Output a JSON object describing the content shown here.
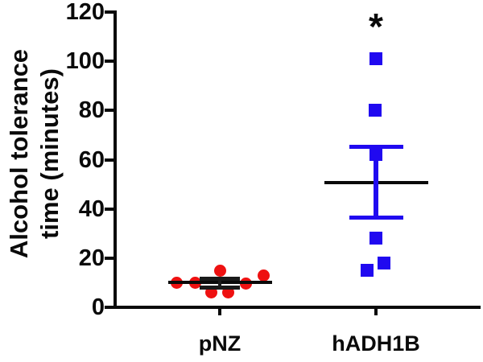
{
  "figure": {
    "y_axis_label_line1": "Alcohol tolerance",
    "y_axis_label_line2": "time (minutes)"
  },
  "colors": {
    "pnz_marker": "#ee1111",
    "hadh1b_marker": "#2009f0",
    "axis": "#0a0a0a",
    "mean_line": "#0a0a0a",
    "background": "#ffffff"
  },
  "chart_data": {
    "type": "scatter",
    "title": "",
    "xlabel": "",
    "ylabel": "Alcohol tolerance time (minutes)",
    "ylabel_lines": [
      "Alcohol tolerance",
      "time (minutes)"
    ],
    "ylim": [
      0,
      120
    ],
    "yticks": [
      120,
      100,
      80,
      60,
      40,
      20,
      0
    ],
    "grid": false,
    "legend": null,
    "categories": [
      "pNZ",
      "hADH1B"
    ],
    "series": [
      {
        "name": "pNZ",
        "marker": "circle",
        "color": "#ee1111",
        "error_color": "#1a1a1a",
        "values": [
          10,
          10,
          6,
          15,
          6,
          9.5,
          13
        ],
        "x_offsets": [
          -54,
          -31,
          -11,
          0,
          10,
          32,
          54
        ],
        "mean": 10,
        "error_low": 8.3,
        "error_high": 11.7,
        "significance": ""
      },
      {
        "name": "hADH1B",
        "marker": "square",
        "color": "#2009f0",
        "error_color": "#2009f0",
        "values": [
          101,
          80,
          62,
          28,
          18,
          15
        ],
        "x_offsets": [
          0,
          -1,
          0,
          0,
          10,
          -11
        ],
        "mean": 50.7,
        "error_low": 36.5,
        "error_high": 65.3,
        "significance": "*"
      }
    ]
  }
}
